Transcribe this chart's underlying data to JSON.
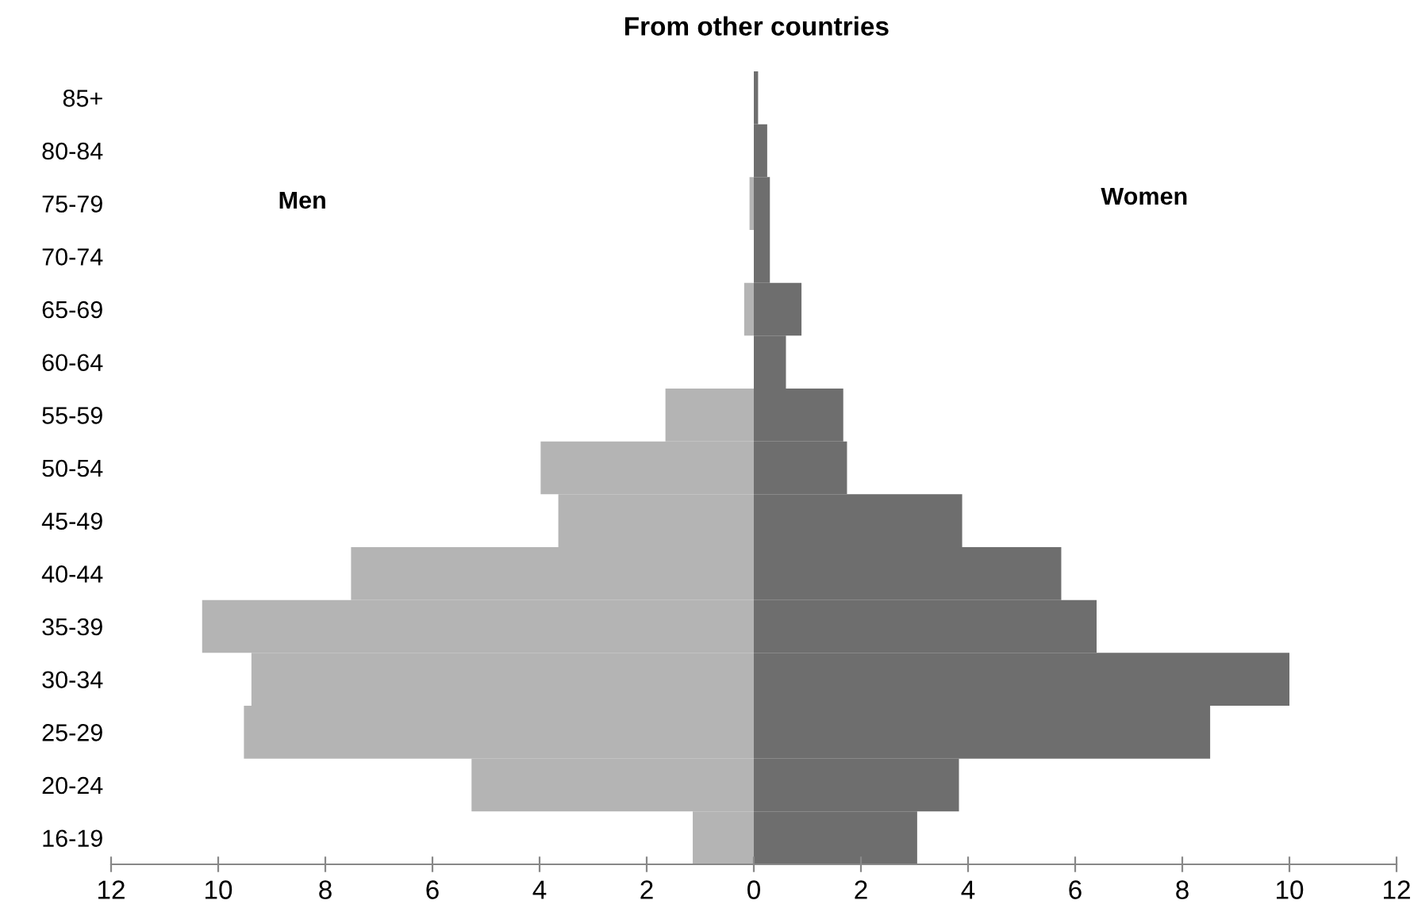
{
  "chart_data": {
    "type": "bar",
    "orientation": "horizontal",
    "stacked": true,
    "title": "From other countries",
    "annotations": [
      "Men",
      "Women"
    ],
    "categories": [
      "85+",
      "80-84",
      "75-79",
      "70-74",
      "65-69",
      "60-64",
      "55-59",
      "50-54",
      "45-49",
      "40-44",
      "35-39",
      "30-34",
      "25-29",
      "20-24",
      "16-19"
    ],
    "series": [
      {
        "color": "#b4b4b4",
        "values": [
          null,
          null,
          -0.08,
          null,
          -0.18,
          null,
          -1.65,
          -3.98,
          -3.65,
          -7.52,
          -10.3,
          -9.38,
          -9.52,
          -5.27,
          -1.14
        ]
      },
      {
        "color": "#6e6e6e",
        "values": [
          0.08,
          0.25,
          0.3,
          0.3,
          0.89,
          0.6,
          1.67,
          1.74,
          3.89,
          5.74,
          6.4,
          10.0,
          8.52,
          3.83,
          3.05
        ]
      }
    ],
    "xlim": [
      -12,
      12
    ],
    "xticks": [
      {
        "value": -12,
        "label": "12"
      },
      {
        "value": -10,
        "label": "10"
      },
      {
        "value": -8,
        "label": "8"
      },
      {
        "value": -6,
        "label": "6"
      },
      {
        "value": -4,
        "label": "4"
      },
      {
        "value": -2,
        "label": "2"
      },
      0,
      2,
      4,
      6,
      8,
      10,
      12
    ],
    "grid": false,
    "legend": false
  }
}
